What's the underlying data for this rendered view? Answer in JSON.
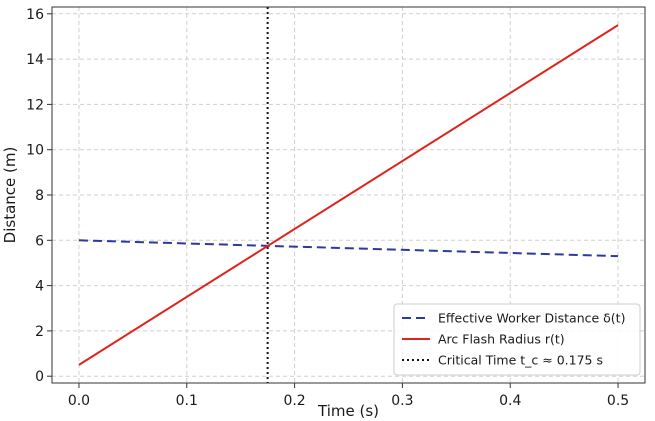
{
  "chart_data": {
    "type": "line",
    "xlabel": "Time (s)",
    "ylabel": "Distance (m)",
    "xlim": [
      -0.025,
      0.525
    ],
    "ylim": [
      -0.3,
      16.3
    ],
    "xticks": [
      0.0,
      0.1,
      0.2,
      0.3,
      0.4,
      0.5
    ],
    "xtick_labels": [
      "0.0",
      "0.1",
      "0.2",
      "0.3",
      "0.4",
      "0.5"
    ],
    "yticks": [
      0,
      2,
      4,
      6,
      8,
      10,
      12,
      14,
      16
    ],
    "ytick_labels": [
      "0",
      "2",
      "4",
      "6",
      "8",
      "10",
      "12",
      "14",
      "16"
    ],
    "grid": true,
    "legend_position": "lower-right",
    "series": [
      {
        "name": "Effective Worker Distance δ(t)",
        "color": "#2b3a9c",
        "style": "dashed",
        "x": [
          0.0,
          0.5
        ],
        "y": [
          6.0,
          5.3
        ]
      },
      {
        "name": "Arc Flash Radius r(t)",
        "color": "#e0231c",
        "style": "solid",
        "x": [
          0.0,
          0.5
        ],
        "y": [
          0.5,
          15.5
        ]
      }
    ],
    "vlines": [
      {
        "name": "Critical Time t_c ≈ 0.175 s",
        "x": 0.175,
        "color": "#111111",
        "style": "dotted"
      }
    ]
  }
}
